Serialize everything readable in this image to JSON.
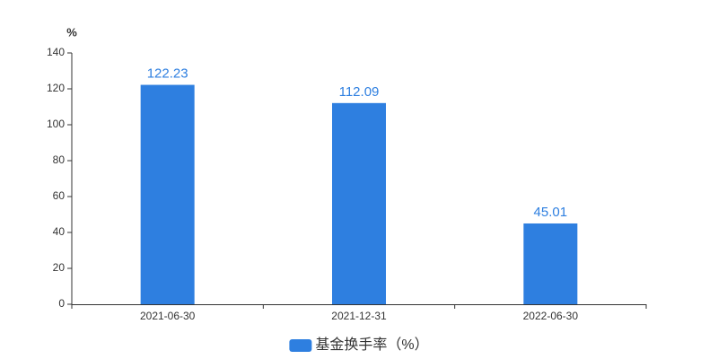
{
  "chart_data": {
    "type": "bar",
    "y_label": "%",
    "categories": [
      "2021-06-30",
      "2021-12-31",
      "2022-06-30"
    ],
    "series": [
      {
        "name": "基金换手率（%）",
        "color": "#2e7fe0",
        "values": [
          122.23,
          112.09,
          45.01
        ]
      }
    ],
    "ylim": [
      0,
      140
    ],
    "yticks": [
      0,
      20,
      40,
      60,
      80,
      100,
      120,
      140
    ],
    "grid": false,
    "legend": "bottom"
  }
}
